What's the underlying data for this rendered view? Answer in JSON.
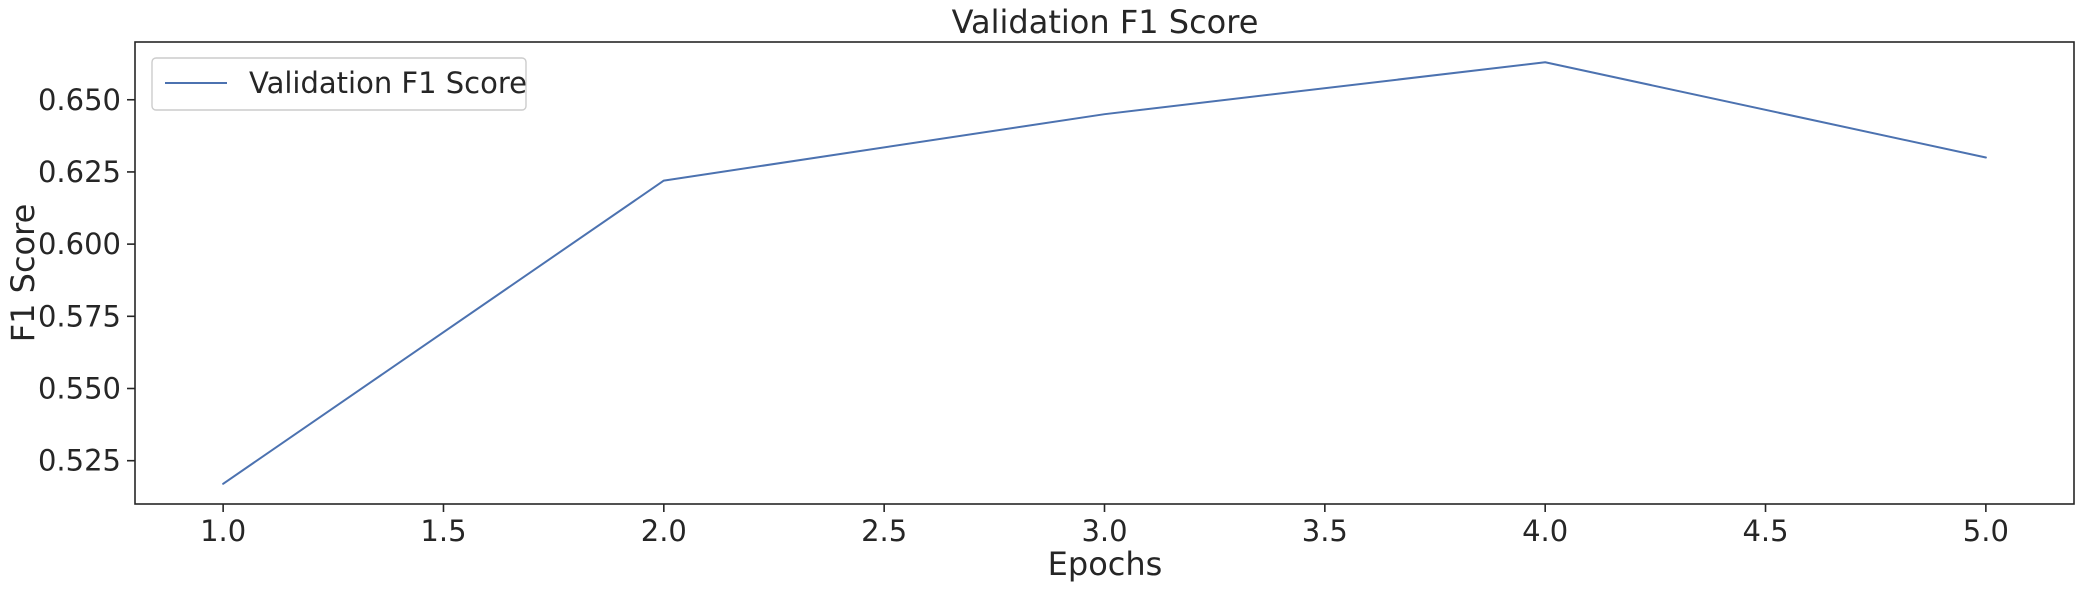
{
  "chart_data": {
    "type": "line",
    "title": "Validation F1 Score",
    "xlabel": "Epochs",
    "ylabel": "F1 Score",
    "xlim": [
      0.8,
      5.2
    ],
    "ylim": [
      0.51,
      0.67
    ],
    "xticks": [
      1.0,
      1.5,
      2.0,
      2.5,
      3.0,
      3.5,
      4.0,
      4.5,
      5.0
    ],
    "xtick_labels": [
      "1.0",
      "1.5",
      "2.0",
      "2.5",
      "3.0",
      "3.5",
      "4.0",
      "4.5",
      "5.0"
    ],
    "yticks": [
      0.525,
      0.55,
      0.575,
      0.6,
      0.625,
      0.65
    ],
    "ytick_labels": [
      "0.525",
      "0.550",
      "0.575",
      "0.600",
      "0.625",
      "0.650"
    ],
    "grid": false,
    "legend_position": "top-left",
    "series": [
      {
        "name": "Validation F1 Score",
        "color": "#4c72b0",
        "x": [
          1,
          2,
          3,
          4,
          5
        ],
        "y": [
          0.517,
          0.622,
          0.645,
          0.663,
          0.63
        ]
      }
    ]
  }
}
